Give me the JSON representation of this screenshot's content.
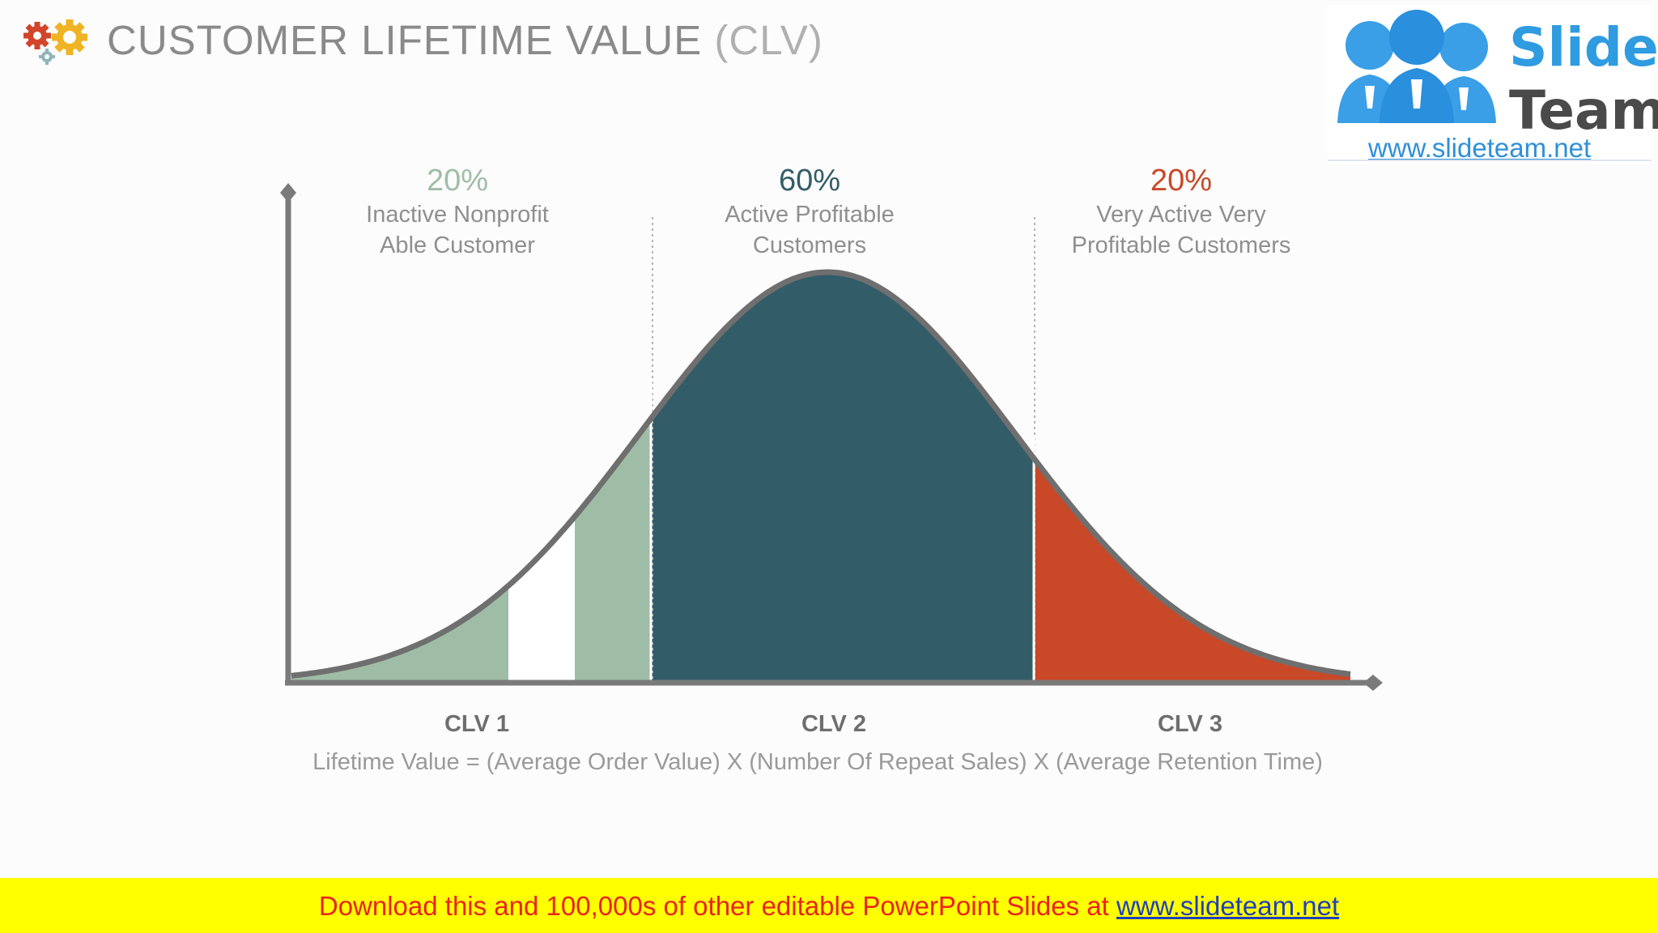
{
  "header": {
    "title_main": "CUSTOMER LIFETIME VALUE",
    "title_accent": "(CLV)",
    "icon": "gears-icon"
  },
  "logo": {
    "line1": "Slide",
    "line2": "Team",
    "url": "www.slideteam.net"
  },
  "segments": [
    {
      "percent": "20%",
      "line1": "Inactive Nonprofit",
      "line2": "Able Customer",
      "color": "#9fbda6",
      "axis_label": "CLV 1"
    },
    {
      "percent": "60%",
      "line1": "Active Profitable",
      "line2": "Customers",
      "color": "#335c69",
      "axis_label": "CLV 2"
    },
    {
      "percent": "20%",
      "line1": "Very Active Very",
      "line2": "Profitable Customers",
      "color": "#c94828",
      "axis_label": "CLV 3"
    }
  ],
  "formula": "Lifetime Value = (Average Order Value) X (Number Of Repeat Sales) X (Average Retention Time)",
  "banner": {
    "text": "Download this and 100,000s of other editable PowerPoint Slides at ",
    "link": "www.slideteam.net"
  },
  "colors": {
    "axis": "#7a7a7a",
    "curve": "#6f6f6f",
    "banner_bg": "#ffff00",
    "banner_text": "#e8231f"
  }
}
